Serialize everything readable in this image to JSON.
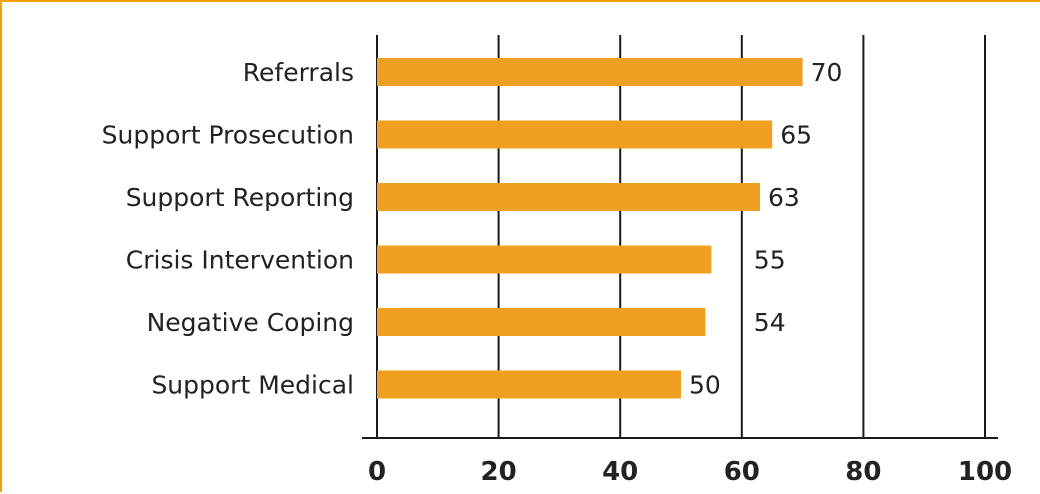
{
  "chart_data": {
    "type": "bar",
    "orientation": "horizontal",
    "categories": [
      "Referrals",
      "Support Prosecution",
      "Support Reporting",
      "Crisis Intervention",
      "Negative Coping",
      "Support Medical"
    ],
    "values": [
      70,
      65,
      63,
      55,
      54,
      50
    ],
    "xlim": [
      0,
      100
    ],
    "xticks": [
      "0",
      "20",
      "40",
      "60",
      "80",
      "100"
    ],
    "grid": true,
    "data_labels": true,
    "bar_color": "#f0a020",
    "frame_color": "#f0a30a"
  }
}
